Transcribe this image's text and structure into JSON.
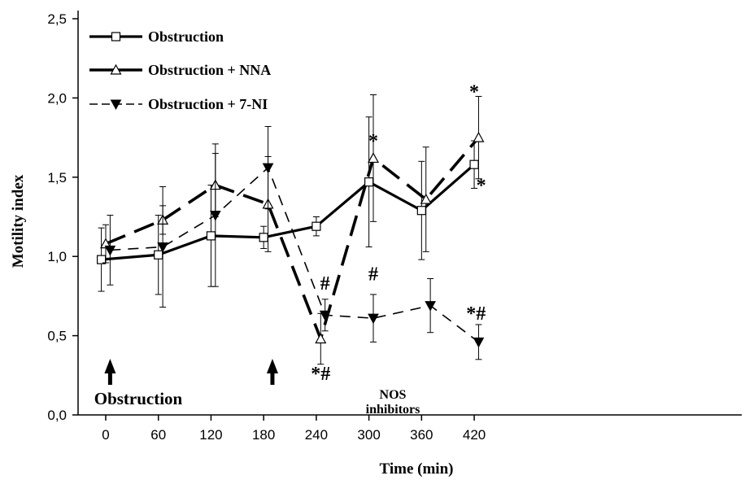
{
  "chart_data": {
    "type": "line",
    "xlabel": "Time (min)",
    "ylabel": "Motility index",
    "x_ticks": [
      "0",
      "60",
      "120",
      "180",
      "240",
      "300",
      "360",
      "420"
    ],
    "y_ticks": [
      "0,0",
      "0,5",
      "1,0",
      "1,5",
      "2,0",
      "2,5"
    ],
    "ylim": [
      0,
      2.5
    ],
    "xlim": [
      -20,
      430
    ],
    "grid": false,
    "legend_position": "top-left",
    "series": [
      {
        "name": "Obstruction",
        "style": "solid",
        "marker": "square-open",
        "x": [
          -5,
          60,
          120,
          180,
          240,
          300,
          360,
          420
        ],
        "values": [
          0.98,
          1.01,
          1.13,
          1.12,
          1.19,
          1.47,
          1.29,
          1.58
        ],
        "errors": [
          0.2,
          0.25,
          0.32,
          0.07,
          0.06,
          0.41,
          0.31,
          0.15
        ]
      },
      {
        "name": "Obstruction + NNA",
        "style": "long-dash",
        "marker": "triangle-up-open",
        "x": [
          0,
          65,
          125,
          185,
          245,
          305,
          365,
          425
        ],
        "values": [
          1.08,
          1.23,
          1.45,
          1.33,
          0.48,
          1.62,
          1.36,
          1.75
        ],
        "errors": [
          0.12,
          0.09,
          0.2,
          0.3,
          0.16,
          0.4,
          0.33,
          0.26
        ]
      },
      {
        "name": "Obstruction + 7-NI",
        "style": "dash",
        "marker": "triangle-down-filled",
        "x": [
          5,
          65,
          125,
          185,
          250,
          305,
          370,
          425
        ],
        "values": [
          1.04,
          1.06,
          1.26,
          1.56,
          0.63,
          0.61,
          0.69,
          0.46
        ],
        "errors": [
          0.22,
          0.38,
          0.45,
          0.26,
          0.1,
          0.15,
          0.17,
          0.11
        ]
      }
    ],
    "significance_marks": [
      {
        "text": "*#",
        "x": 245,
        "y": 0.22
      },
      {
        "text": "#",
        "x": 250,
        "y": 0.79
      },
      {
        "text": "*",
        "x": 305,
        "y": 1.69
      },
      {
        "text": "#",
        "x": 305,
        "y": 0.85
      },
      {
        "text": "*",
        "x": 420,
        "y": 2.0
      },
      {
        "text": "*",
        "x": 428,
        "y": 1.41
      },
      {
        "text": "*#",
        "x": 422,
        "y": 0.6
      }
    ],
    "annotations": [
      {
        "text": "Obstruction",
        "x": 5
      },
      {
        "text": "NOS inhibitors",
        "x": 190
      }
    ]
  }
}
